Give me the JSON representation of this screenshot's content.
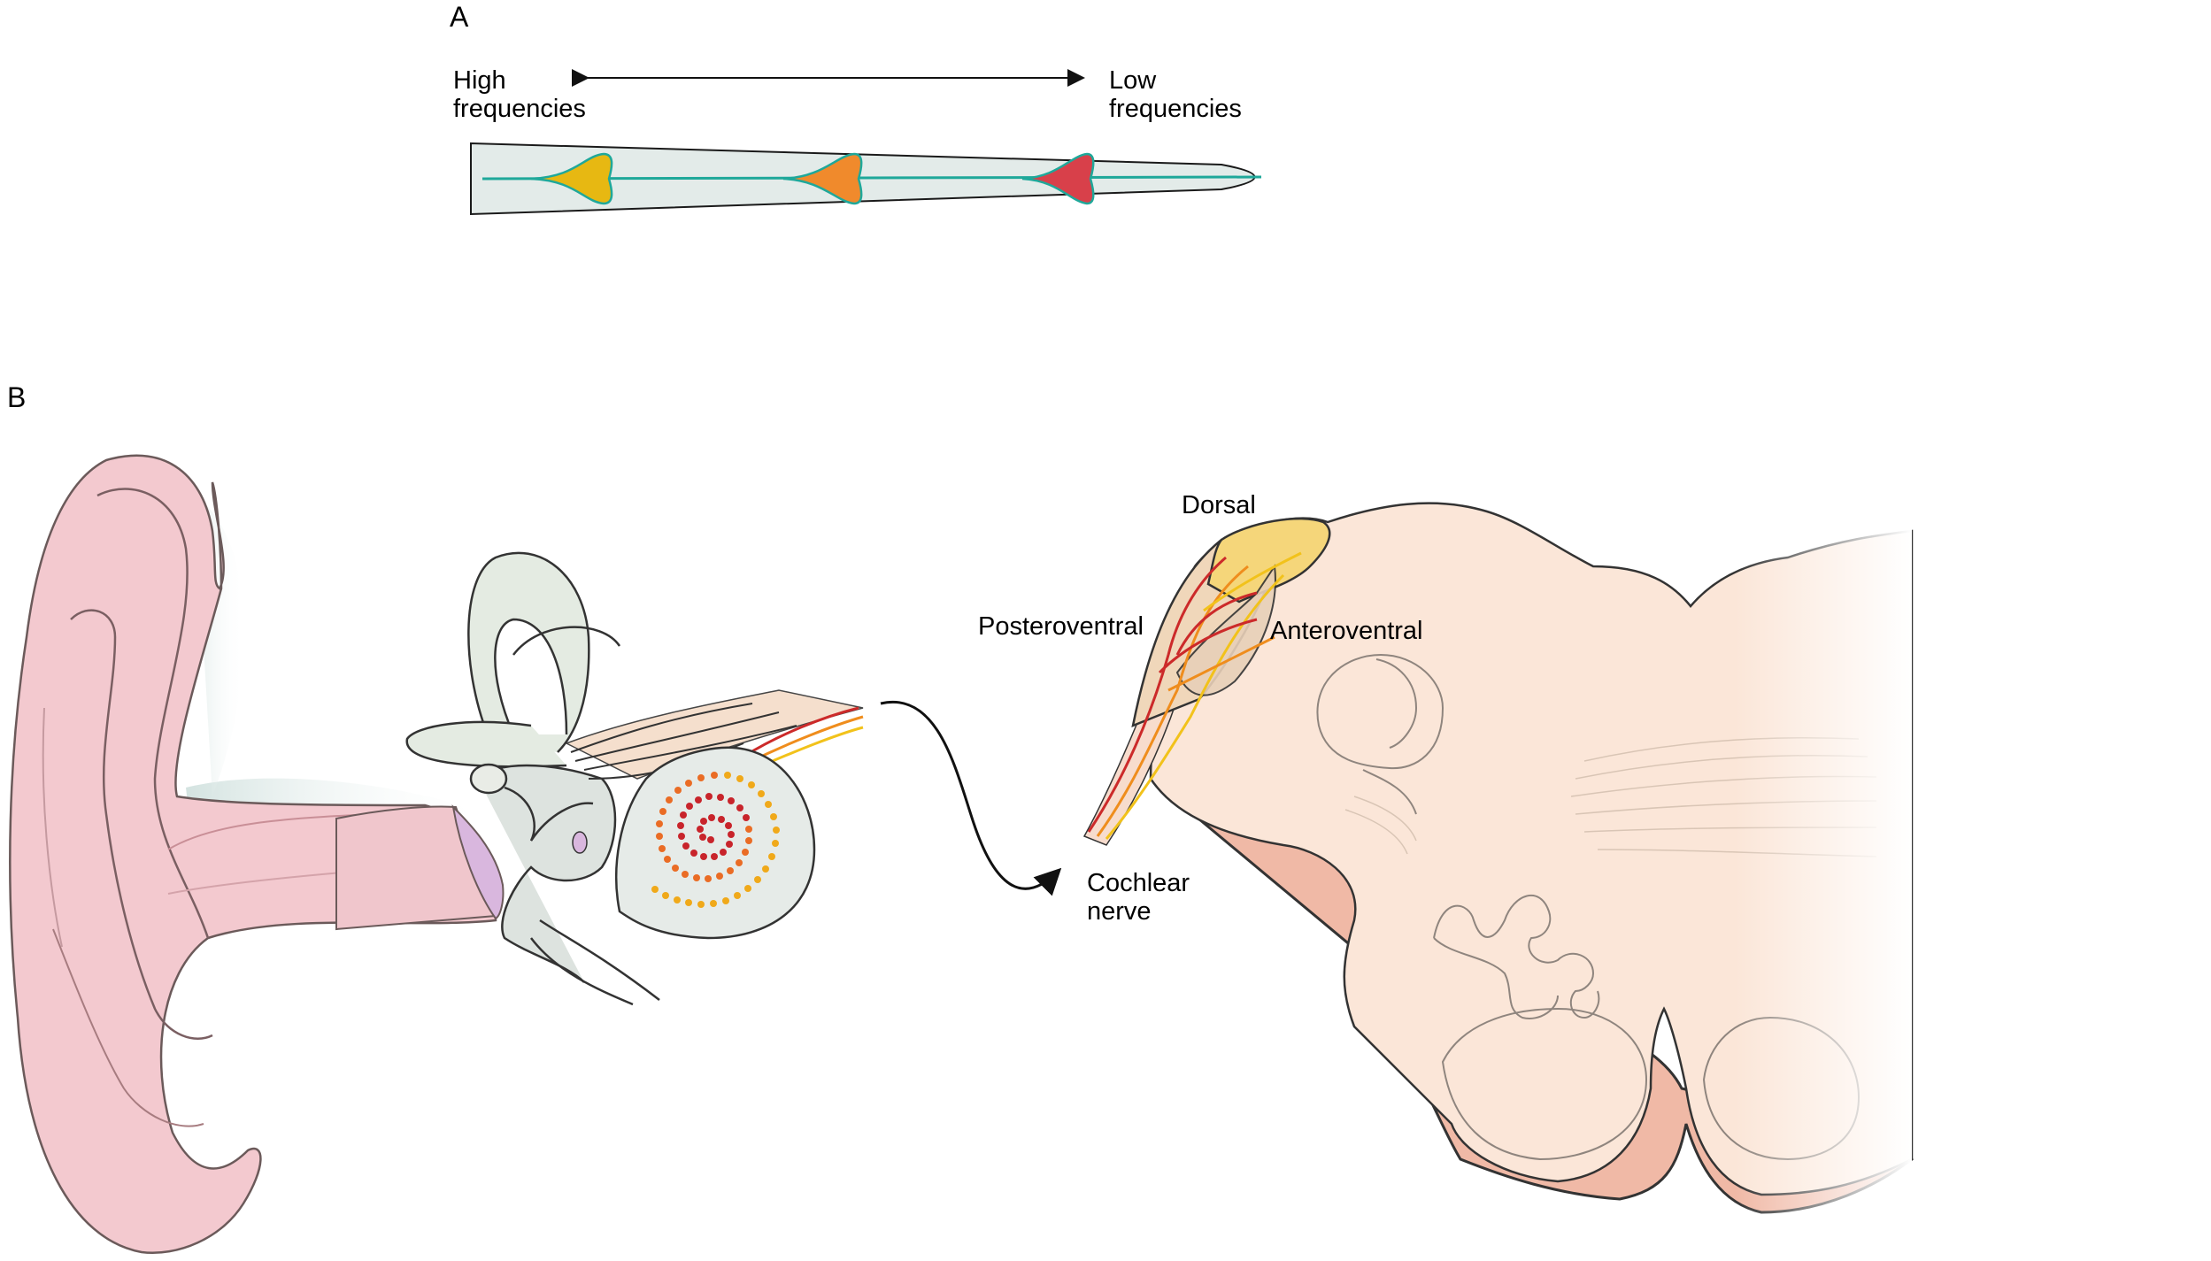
{
  "panel_a": {
    "letter": "A",
    "high_label": [
      "High",
      "frequencies"
    ],
    "low_label": [
      "Low",
      "frequencies"
    ],
    "colors": {
      "basilar_fill": "#e3ebe9",
      "basilar_line": "#1fa89a",
      "high_peak": "#e7b812",
      "mid_peak": "#f08a2c",
      "low_peak": "#d8404a"
    }
  },
  "panel_b": {
    "letter": "B",
    "labels": {
      "dorsal": "Dorsal",
      "posteroventral": "Posteroventral",
      "anteroventral": "Anteroventral",
      "cochlear_nerve": [
        "Cochlear",
        "nerve"
      ]
    },
    "colors": {
      "ear": "#f3c9cf",
      "brainstem": "#fbe6d8",
      "brainstem_edge": "#f0b9a6",
      "nucleus_dorsal": "#f5d67a",
      "fiber_red": "#cc2a2a",
      "fiber_orange": "#ef8d1d",
      "fiber_yellow": "#f2c21b"
    }
  }
}
